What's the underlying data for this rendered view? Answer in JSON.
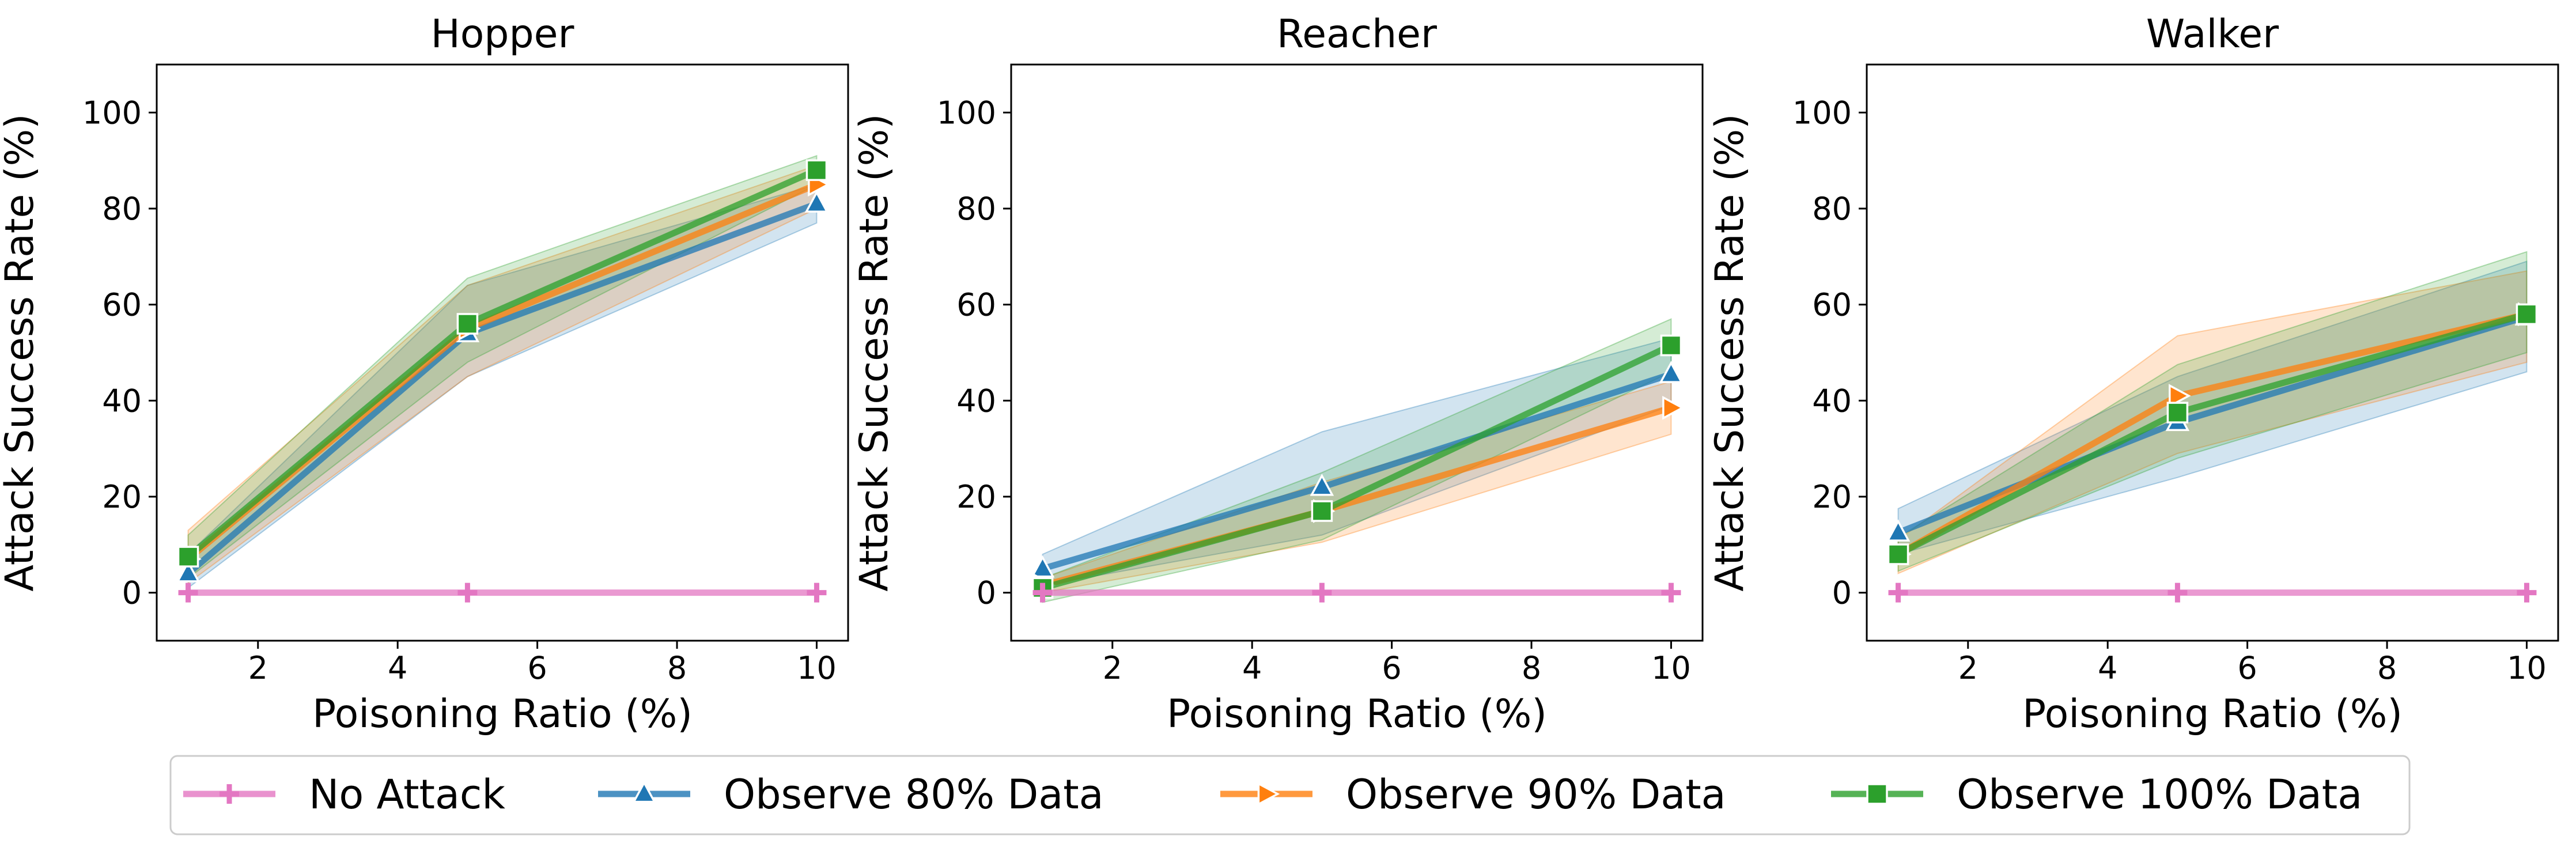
{
  "chart_data": {
    "type": "line",
    "x": [
      1,
      5,
      10
    ],
    "xlabel": "Poisoning Ratio (%)",
    "ylabel": "Attack Success Rate (%)",
    "xlim": [
      0.55,
      10.45
    ],
    "ylim": [
      -10,
      110
    ],
    "xticks": [
      2,
      4,
      6,
      8,
      10
    ],
    "yticks": [
      0,
      20,
      40,
      60,
      80,
      100
    ],
    "grid": false,
    "legend_position": "bottom-center",
    "series_style": [
      {
        "name": "No Attack",
        "color": "#e377c2",
        "marker": "plus"
      },
      {
        "name": "Observe 80% Data",
        "color": "#1f77b4",
        "marker": "triangle-up"
      },
      {
        "name": "Observe 90% Data",
        "color": "#ff7f0e",
        "marker": "triangle-right"
      },
      {
        "name": "Observe 100% Data",
        "color": "#2ca02c",
        "marker": "square"
      }
    ],
    "subplots": [
      {
        "title": "Hopper",
        "series": [
          {
            "name": "No Attack",
            "values": [
              0,
              0,
              0
            ],
            "lower": [
              0,
              0,
              0
            ],
            "upper": [
              0,
              0,
              0
            ]
          },
          {
            "name": "Observe 80% Data",
            "values": [
              4,
              54,
              81
            ],
            "lower": [
              1,
              45,
              77
            ],
            "upper": [
              8,
              64,
              85
            ]
          },
          {
            "name": "Observe 90% Data",
            "values": [
              7,
              55,
              85
            ],
            "lower": [
              2,
              45,
              80
            ],
            "upper": [
              13,
              64,
              89
            ]
          },
          {
            "name": "Observe 100% Data",
            "values": [
              7.5,
              56,
              88
            ],
            "lower": [
              3,
              48,
              85
            ],
            "upper": [
              12,
              65.5,
              91
            ]
          }
        ]
      },
      {
        "title": "Reacher",
        "series": [
          {
            "name": "No Attack",
            "values": [
              0,
              0,
              0
            ],
            "lower": [
              0,
              0,
              0
            ],
            "upper": [
              0,
              0,
              0
            ]
          },
          {
            "name": "Observe 80% Data",
            "values": [
              5,
              22,
              45.5
            ],
            "lower": [
              1.5,
              12,
              39
            ],
            "upper": [
              8,
              33.5,
              53
            ]
          },
          {
            "name": "Observe 90% Data",
            "values": [
              1.5,
              17,
              38.5
            ],
            "lower": [
              0,
              10.5,
              33
            ],
            "upper": [
              3,
              23,
              44
            ]
          },
          {
            "name": "Observe 100% Data",
            "values": [
              1,
              17,
              51.5
            ],
            "lower": [
              -2,
              11,
              46
            ],
            "upper": [
              3,
              25,
              57
            ]
          }
        ]
      },
      {
        "title": "Walker",
        "series": [
          {
            "name": "No Attack",
            "values": [
              0,
              0,
              0
            ],
            "lower": [
              0,
              0,
              0
            ],
            "upper": [
              0,
              0,
              0
            ]
          },
          {
            "name": "Observe 80% Data",
            "values": [
              12.5,
              35.5,
              57.5
            ],
            "lower": [
              8,
              24,
              46
            ],
            "upper": [
              17.5,
              45,
              69
            ]
          },
          {
            "name": "Observe 90% Data",
            "values": [
              8,
              41,
              58
            ],
            "lower": [
              4,
              29,
              48
            ],
            "upper": [
              11,
              53.5,
              67
            ]
          },
          {
            "name": "Observe 100% Data",
            "values": [
              8,
              37.5,
              58
            ],
            "lower": [
              4.5,
              28,
              50
            ],
            "upper": [
              11.5,
              47.5,
              71
            ]
          }
        ]
      }
    ]
  }
}
